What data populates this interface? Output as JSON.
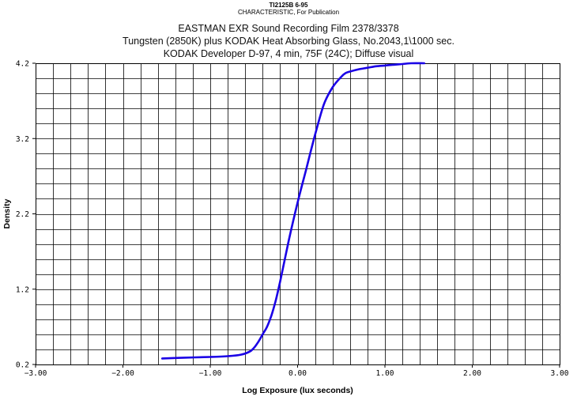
{
  "header": {
    "code": "TI2125B 6-95",
    "subtitle": "CHARACTERISTIC,  For Publication"
  },
  "chart_data": {
    "type": "line",
    "title_lines": [
      "EASTMAN EXR Sound Recording Film 2378/3378",
      "Tungsten (2850K) plus KODAK Heat Absorbing Glass, No.2043,1\\1000 sec.",
      "KODAK Developer D-97, 4 min, 75F (24C); Diffuse visual"
    ],
    "xlabel": "Log Exposure (lux seconds)",
    "ylabel": "Density",
    "xlim": [
      -3.0,
      3.0
    ],
    "ylim": [
      0.2,
      4.2
    ],
    "xticks": [
      -3.0,
      -2.0,
      -1.0,
      0.0,
      1.0,
      2.0,
      3.0
    ],
    "xtick_labels": [
      "−3.00",
      "−2.00",
      "−1.00",
      "0.00",
      "1.00",
      "2.00",
      "3.00"
    ],
    "yticks": [
      0.2,
      1.2,
      2.2,
      3.2,
      4.2
    ],
    "ytick_labels": [
      "0.2",
      "1.2",
      "2.2",
      "3.2",
      "4.2"
    ],
    "grid": true,
    "grid_step_x": 0.2,
    "grid_step_y": 0.2,
    "series": [
      {
        "color": "#1a00e6",
        "x": [
          -1.55,
          -1.3,
          -1.0,
          -0.8,
          -0.65,
          -0.55,
          -0.5,
          -0.45,
          -0.4,
          -0.35,
          -0.3,
          -0.25,
          -0.2,
          -0.1,
          0.0,
          0.1,
          0.2,
          0.3,
          0.4,
          0.5,
          0.55,
          0.6,
          0.7,
          0.8,
          0.9,
          1.0,
          1.1,
          1.2,
          1.3,
          1.45
        ],
        "y": [
          0.28,
          0.29,
          0.3,
          0.31,
          0.33,
          0.37,
          0.42,
          0.5,
          0.6,
          0.7,
          0.85,
          1.05,
          1.3,
          1.85,
          2.35,
          2.8,
          3.25,
          3.65,
          3.88,
          4.02,
          4.07,
          4.09,
          4.12,
          4.14,
          4.16,
          4.17,
          4.18,
          4.19,
          4.2,
          4.2
        ]
      }
    ]
  }
}
